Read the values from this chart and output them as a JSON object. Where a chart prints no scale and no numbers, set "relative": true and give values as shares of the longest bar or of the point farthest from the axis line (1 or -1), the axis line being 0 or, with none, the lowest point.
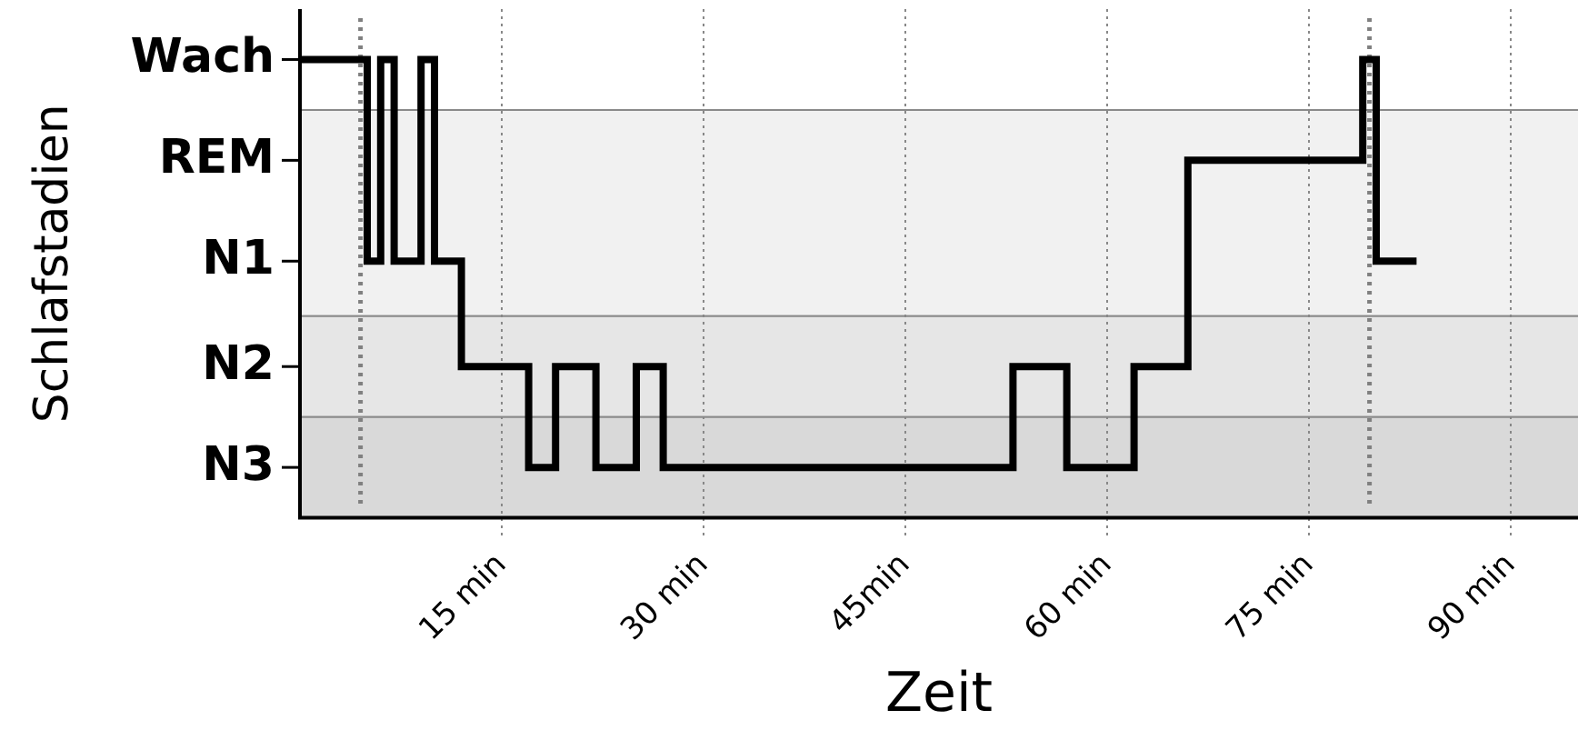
{
  "chart_data": {
    "type": "step",
    "xlabel": "Zeit",
    "ylabel": "Schlafstadien",
    "relative": true,
    "series": [
      {
        "color": "#000000",
        "x": [
          0,
          5,
          6,
          7,
          9,
          10,
          12,
          17,
          19,
          22,
          25,
          27,
          53,
          57,
          62,
          66,
          79,
          80,
          83
        ],
        "values": [
          1,
          0.56,
          1,
          0.56,
          1,
          0.56,
          0.33,
          0.11,
          0.33,
          0.11,
          0.33,
          0.11,
          0.33,
          0.11,
          0.33,
          0.78,
          1,
          0.56,
          0.56
        ]
      }
    ],
    "xlim": [
      0,
      95
    ],
    "xticks": [
      {
        "value": 15,
        "label": "15 min"
      },
      {
        "value": 30,
        "label": "30 min"
      },
      {
        "value": 45,
        "label": "45min"
      },
      {
        "value": 60,
        "label": "60 min"
      },
      {
        "value": 75,
        "label": "75 min"
      },
      {
        "value": 90,
        "label": "90 min"
      }
    ],
    "annotations": [
      "Wach",
      "REM",
      "N1",
      "N2",
      "N3"
    ],
    "bands": [
      {
        "axis": "y",
        "from": 0.44,
        "to": 0.89,
        "color": "#f1f1f1"
      },
      {
        "axis": "y",
        "from": 0.22,
        "to": 0.44,
        "color": "#e6e6e6"
      },
      {
        "axis": "y",
        "from": 0,
        "to": 0.22,
        "color": "#d9d9d9"
      }
    ],
    "ref_lines": [
      {
        "axis": "x",
        "value": 4.5,
        "color": "#808080",
        "line_style": "dotted"
      },
      {
        "axis": "x",
        "value": 79.5,
        "color": "#808080",
        "line_style": "dotted"
      }
    ],
    "grid": "x",
    "legend": false,
    "marker": "none",
    "line_style": "solid"
  }
}
